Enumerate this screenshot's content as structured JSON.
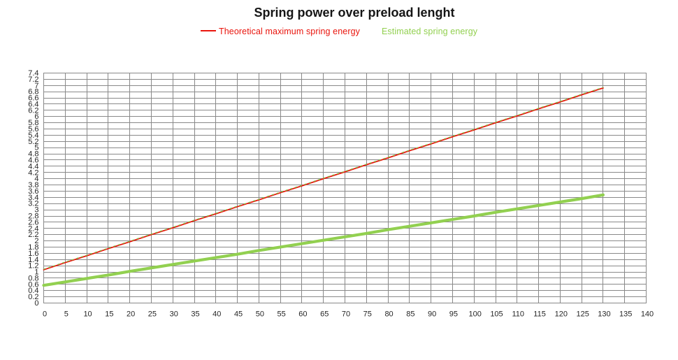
{
  "title": "Spring power over preload lenght",
  "legend": {
    "items": [
      {
        "label": "Theoretical maximum spring energy",
        "color": "#e9150d",
        "swatch": "line"
      },
      {
        "label": "Estimated spring energy",
        "color": "#92d050",
        "swatch": "none"
      }
    ]
  },
  "chart_data": {
    "type": "line",
    "title": "Spring power over preload lenght",
    "xlabel": "",
    "ylabel": "",
    "x": [
      0,
      5,
      10,
      15,
      20,
      25,
      30,
      35,
      40,
      45,
      50,
      55,
      60,
      65,
      70,
      75,
      80,
      85,
      90,
      95,
      100,
      105,
      110,
      115,
      120,
      125,
      130
    ],
    "series": [
      {
        "name": "Theoretical maximum spring energy",
        "color": "#e9150d",
        "width": 1.8,
        "values": [
          1.07,
          1.3,
          1.52,
          1.75,
          1.97,
          2.2,
          2.42,
          2.65,
          2.87,
          3.1,
          3.32,
          3.55,
          3.77,
          4.0,
          4.22,
          4.45,
          4.67,
          4.9,
          5.12,
          5.35,
          5.57,
          5.8,
          6.02,
          6.25,
          6.47,
          6.7,
          6.92
        ]
      },
      {
        "name": "Estimated spring energy",
        "color": "#92d050",
        "width": 4.2,
        "values": [
          0.57,
          0.68,
          0.79,
          0.9,
          1.02,
          1.13,
          1.24,
          1.35,
          1.46,
          1.57,
          1.69,
          1.8,
          1.91,
          2.02,
          2.13,
          2.24,
          2.36,
          2.47,
          2.58,
          2.69,
          2.8,
          2.92,
          3.03,
          3.14,
          3.25,
          3.36,
          3.48
        ]
      }
    ],
    "xlim": [
      0,
      140
    ],
    "ylim": [
      0,
      7.4
    ],
    "x_tick_step": 5,
    "y_tick_step": 0.2,
    "grid": true,
    "gridline_color": "#898989",
    "legend_position": "top"
  }
}
